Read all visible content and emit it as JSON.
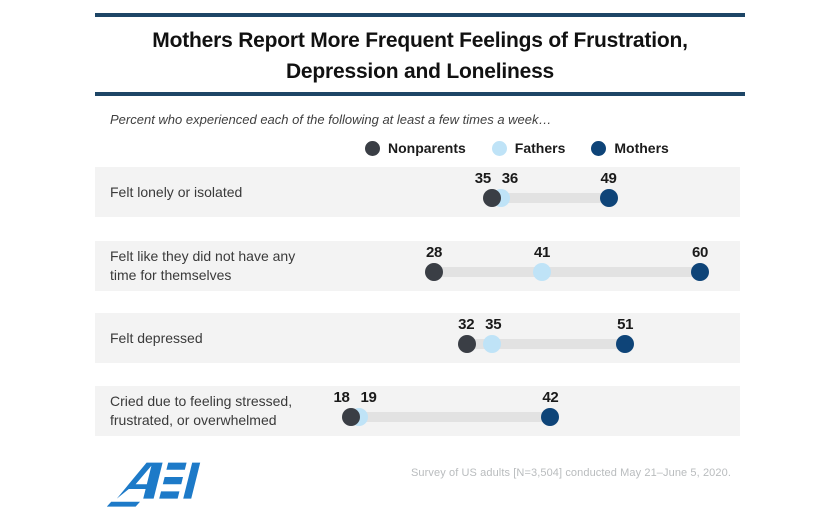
{
  "header": {
    "title_line1": "Mothers Report More Frequent Feelings of Frustration,",
    "title_line2": "Depression and Loneliness",
    "subtitle": "Percent who experienced each of the following at least a few times a week…"
  },
  "legend": {
    "items": [
      {
        "label": "Nonparents",
        "color": "#3a3e45"
      },
      {
        "label": "Fathers",
        "color": "#bfe3f7"
      },
      {
        "label": "Mothers",
        "color": "#0e4478"
      }
    ]
  },
  "chart_data": {
    "type": "dumbbell-dot-plot",
    "title": "Mothers Report More Frequent Feelings of Frustration, Depression and Loneliness",
    "subtitle": "Percent who experienced each of the following at least a few times a week…",
    "value_unit": "percent",
    "xlim": [
      0,
      65
    ],
    "grid": false,
    "legend_position": "top",
    "categories": [
      "Felt lonely or isolated",
      "Felt like they did not have any time for themselves",
      "Felt depressed",
      "Cried due to feeling stressed, frustrated, or overwhelmed"
    ],
    "category_lines": [
      [
        "Felt lonely or isolated"
      ],
      [
        "Felt like they did not have any",
        "time for themselves"
      ],
      [
        "Felt depressed"
      ],
      [
        "Cried due to feeling stressed,",
        "frustrated, or overwhelmed"
      ]
    ],
    "series": [
      {
        "name": "Nonparents",
        "color": "#3a3e45",
        "values": [
          35,
          28,
          32,
          18
        ]
      },
      {
        "name": "Fathers",
        "color": "#bfe3f7",
        "values": [
          36,
          41,
          35,
          19
        ]
      },
      {
        "name": "Mothers",
        "color": "#0e4478",
        "values": [
          49,
          60,
          51,
          42
        ]
      }
    ],
    "connector_color": "#e2e2e2",
    "row_background": "#f3f3f3"
  },
  "footer": {
    "logo_text": "AEI",
    "source": "Survey of US adults [N=3,504] conducted May 21–June 5, 2020."
  },
  "colors": {
    "rule": "#1d4566",
    "logo_blue": "#1d7ac8"
  }
}
